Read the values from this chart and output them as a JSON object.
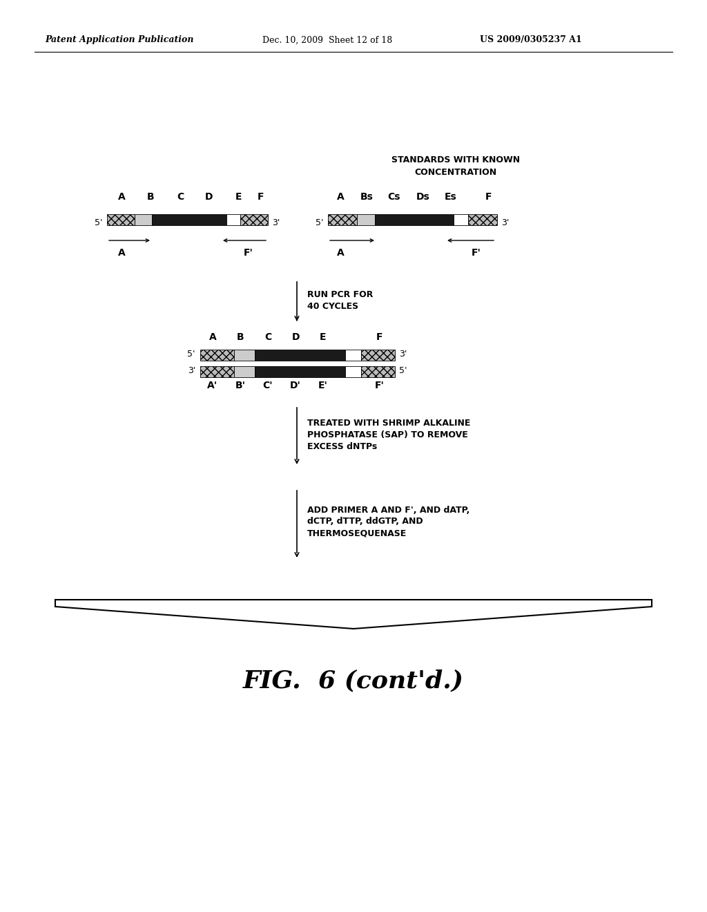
{
  "bg_color": "#ffffff",
  "header_left": "Patent Application Publication",
  "header_mid": "Dec. 10, 2009  Sheet 12 of 18",
  "header_right": "US 2009/0305237 A1",
  "fig_label": "FIG.  6 (cont'd.)",
  "standards_label": "STANDARDS WITH KNOWN\nCONCENTRATION",
  "step1_label": "RUN PCR FOR\n40 CYCLES",
  "step2_label": "TREATED WITH SHRIMP ALKALINE\nPHOSPHATASE (SAP) TO REMOVE\nEXCESS dNTPs",
  "step3_label": "ADD PRIMER A AND F', AND dATP,\ndCTP, dTTP, ddGTP, AND\nTHERMOSEQUENASE",
  "top_strand1_letters": [
    "A",
    "B",
    "C",
    "D",
    "E",
    "F"
  ],
  "top_strand2_letters": [
    "A",
    "Bs",
    "Cs",
    "Ds",
    "Es",
    "F"
  ],
  "mid_strand_top_letters": [
    "A",
    "B",
    "C",
    "D",
    "E",
    "F"
  ],
  "mid_strand_bot_letters": [
    "A'",
    "B'",
    "C'",
    "D'",
    "E'",
    "F'"
  ]
}
